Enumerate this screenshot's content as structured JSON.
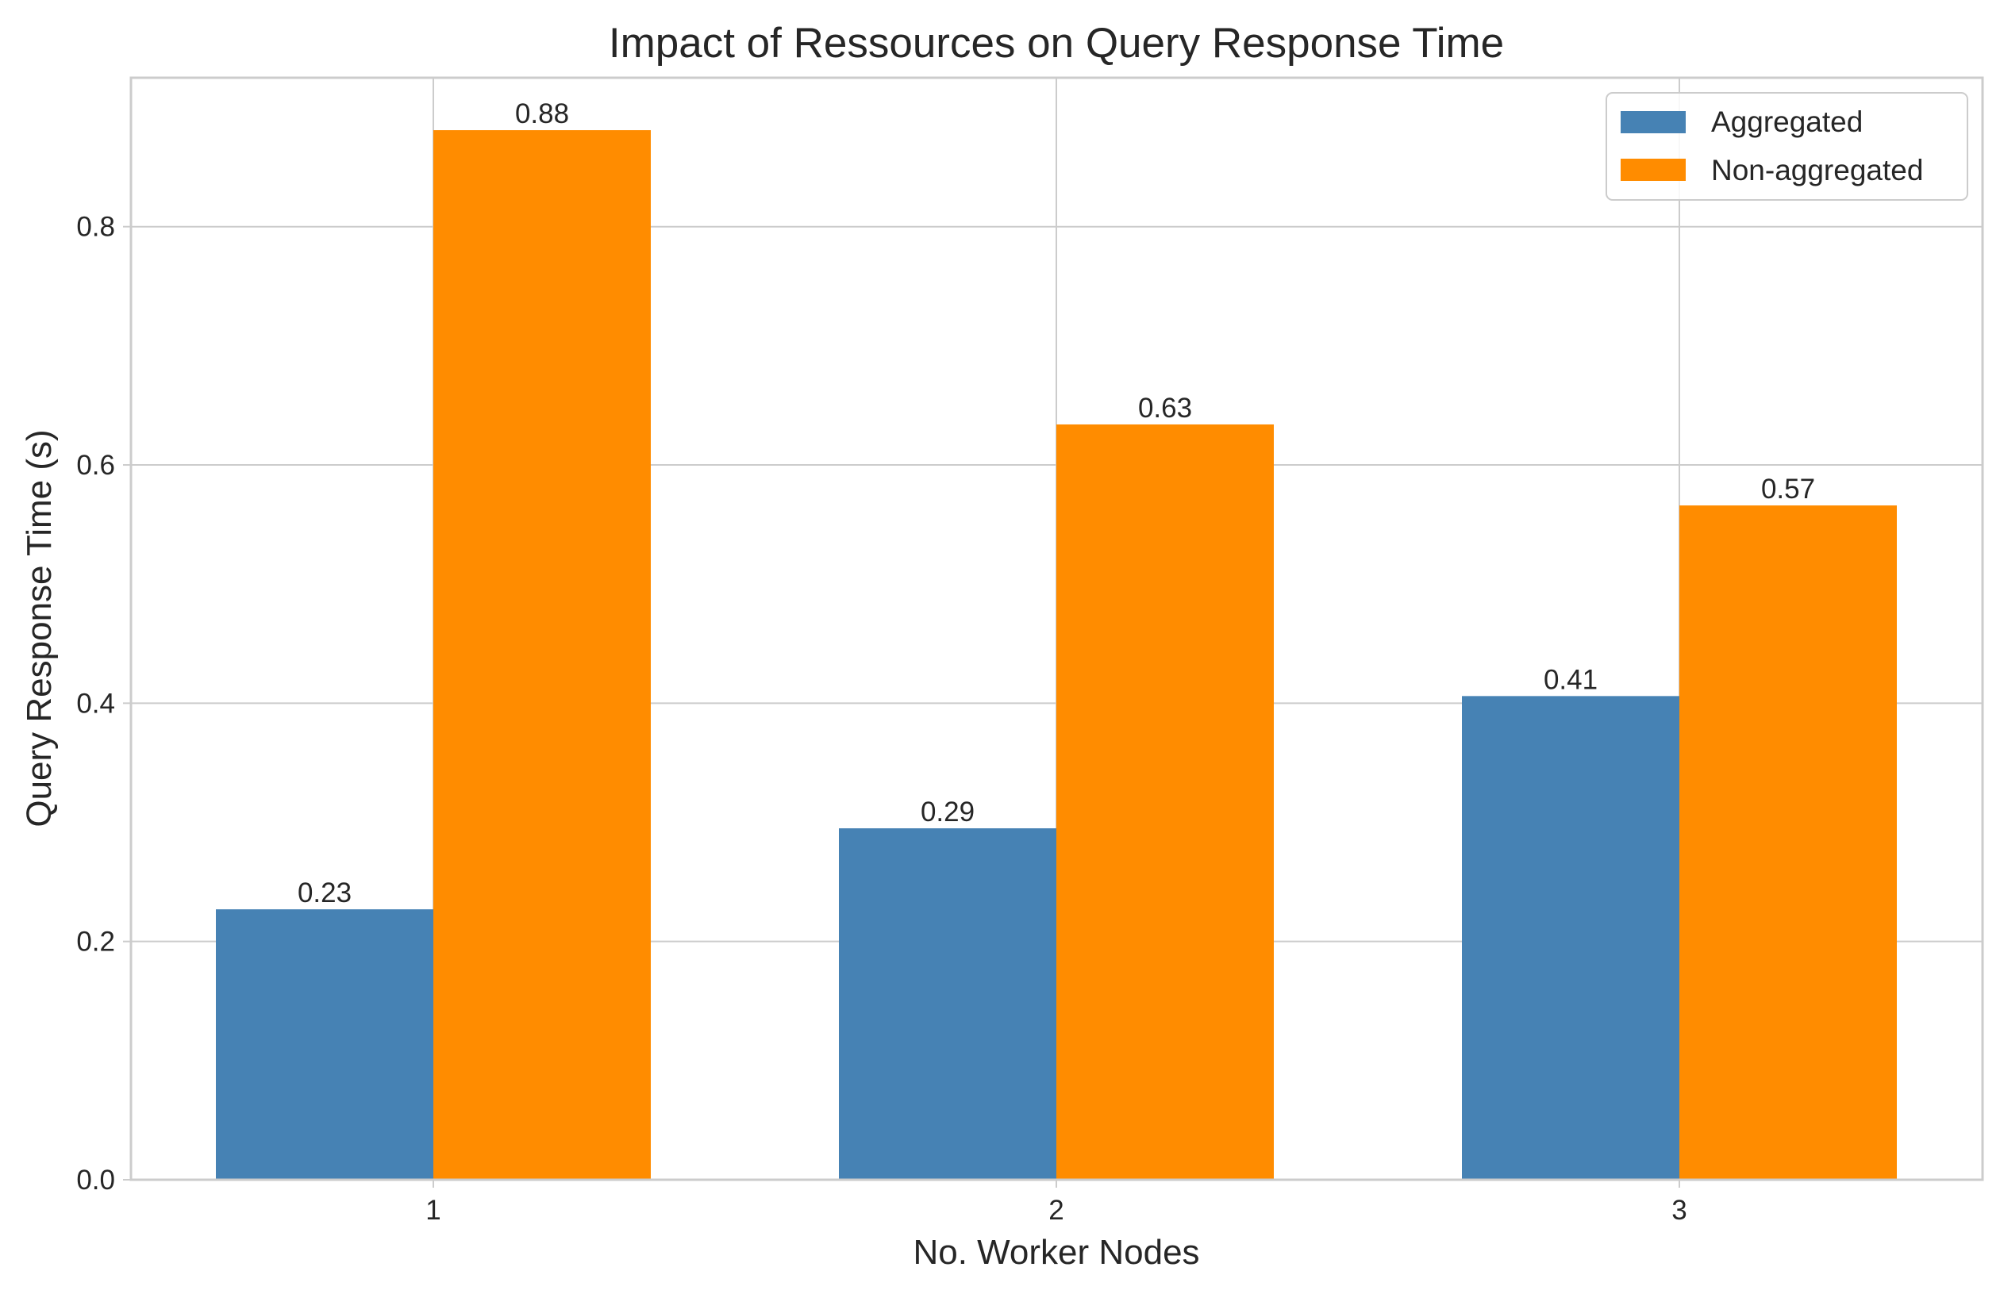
{
  "chart_data": {
    "type": "bar",
    "title": "Impact of Ressources on Query Response Time",
    "xlabel": "No. Worker Nodes",
    "ylabel": "Query Response Time (s)",
    "categories": [
      "1",
      "2",
      "3"
    ],
    "series": [
      {
        "name": "Aggregated",
        "values": [
          0.227,
          0.295,
          0.406
        ],
        "labels": [
          "0.23",
          "0.29",
          "0.41"
        ],
        "color": "#4682B4"
      },
      {
        "name": "Non-aggregated",
        "values": [
          0.881,
          0.634,
          0.566
        ],
        "labels": [
          "0.88",
          "0.63",
          "0.57"
        ],
        "color": "#FF8C00"
      }
    ],
    "ylim": [
      0,
      0.925
    ],
    "yticks": [
      "0.0",
      "0.2",
      "0.4",
      "0.6",
      "0.8"
    ],
    "grid": true,
    "legend_position": "top-right"
  }
}
